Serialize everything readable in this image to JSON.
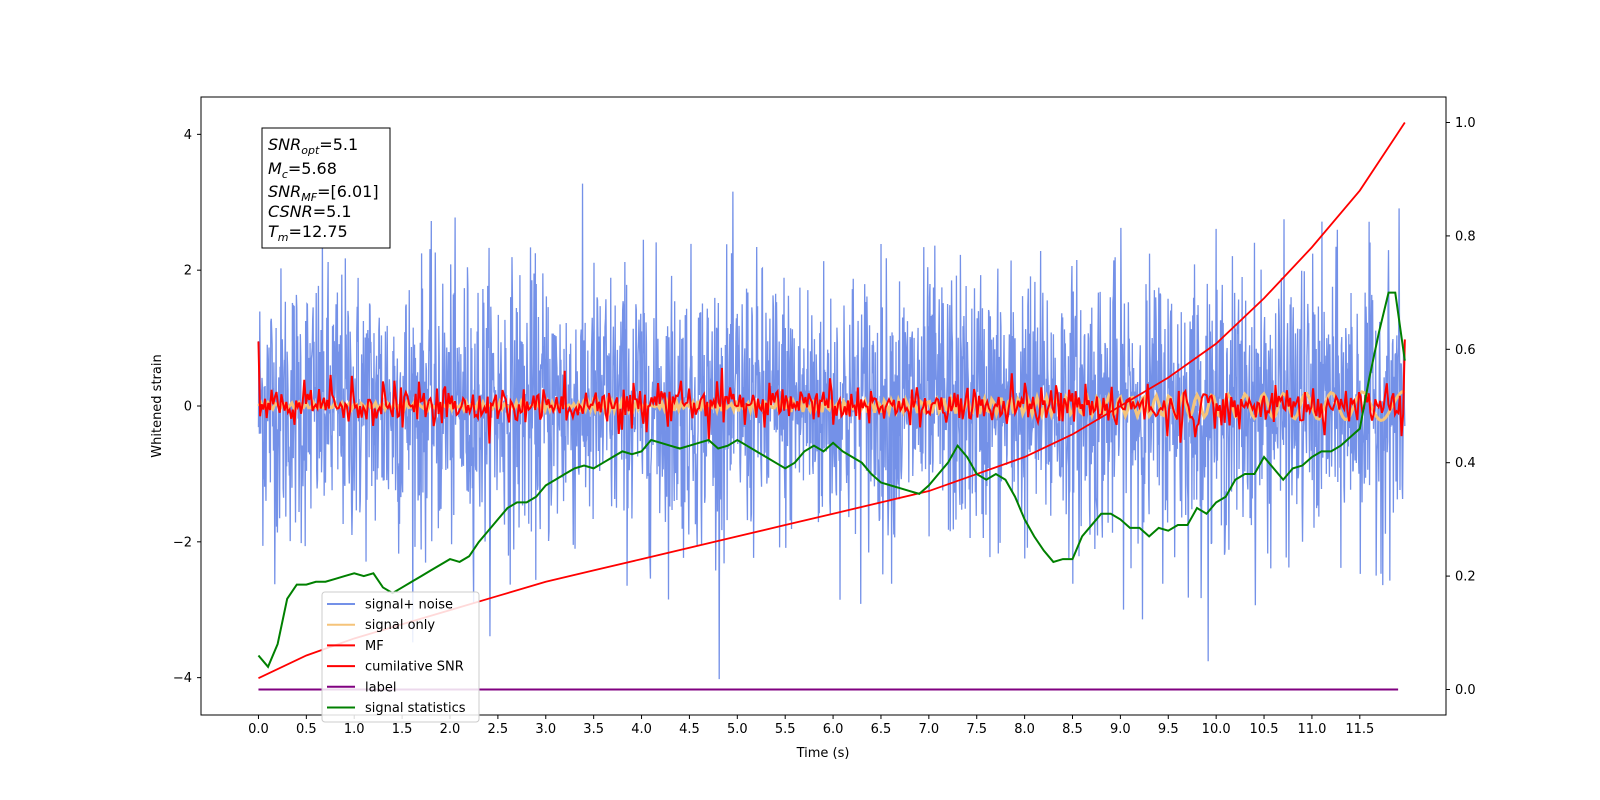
{
  "chart_data": {
    "type": "line",
    "xlabel": "Time (s)",
    "ylabel": "Whitened strain",
    "xlim": [
      -0.6,
      12.4
    ],
    "ylim": [
      -4.55,
      4.55
    ],
    "y2lim": [
      -0.045,
      1.045
    ],
    "grid": false,
    "legend_placement": "lower-left",
    "x_ticks": [
      "0.0",
      "0.5",
      "1.0",
      "1.5",
      "2.0",
      "2.5",
      "3.0",
      "3.5",
      "4.0",
      "4.5",
      "5.0",
      "5.5",
      "6.0",
      "6.5",
      "7.0",
      "7.5",
      "8.0",
      "8.5",
      "9.0",
      "9.5",
      "10.0",
      "10.5",
      "11.0",
      "11.5"
    ],
    "y_ticks": [
      "4",
      "2",
      "0",
      "−2",
      "−4"
    ],
    "y2_ticks": [
      "1.0",
      "0.8",
      "0.6",
      "0.4",
      "0.2",
      "0.0"
    ],
    "info_box": {
      "snr_opt": {
        "base": "SNR",
        "sub": "opt",
        "value": "=5.1"
      },
      "mc": {
        "base": "M",
        "sub": "c",
        "value": "=5.68"
      },
      "snr_mf": {
        "base": "SNR",
        "sub": "MF",
        "value": "=[6.01]"
      },
      "csnr": {
        "base": "CSNR",
        "value": "=5.1"
      },
      "tm": {
        "base": "T",
        "sub": "m",
        "value": "=12.75"
      }
    },
    "series": [
      {
        "name": "signal+ noise",
        "color": "#7491e8",
        "axis": "left",
        "noise_sigma": 1.0,
        "x_range": [
          0,
          11.97
        ]
      },
      {
        "name": "signal only",
        "color": "#f5c47a",
        "axis": "left",
        "amplitude_start": 0.05,
        "amplitude_end": 0.22,
        "x_range": [
          0,
          11.97
        ]
      },
      {
        "name": "MF",
        "color": "#ff0000",
        "axis": "left",
        "x_range": [
          0,
          11.97
        ]
      },
      {
        "name": "cumilative SNR",
        "color": "#ff0000",
        "axis": "right",
        "points": [
          [
            0,
            0.02
          ],
          [
            0.5,
            0.06
          ],
          [
            1,
            0.09
          ],
          [
            1.5,
            0.115
          ],
          [
            2,
            0.14
          ],
          [
            2.5,
            0.165
          ],
          [
            3,
            0.19
          ],
          [
            3.5,
            0.21
          ],
          [
            4,
            0.23
          ],
          [
            4.5,
            0.25
          ],
          [
            5,
            0.27
          ],
          [
            5.5,
            0.29
          ],
          [
            6,
            0.31
          ],
          [
            6.5,
            0.33
          ],
          [
            7,
            0.35
          ],
          [
            7.5,
            0.38
          ],
          [
            8,
            0.41
          ],
          [
            8.5,
            0.45
          ],
          [
            9,
            0.5
          ],
          [
            9.5,
            0.55
          ],
          [
            10,
            0.61
          ],
          [
            10.5,
            0.69
          ],
          [
            11,
            0.78
          ],
          [
            11.5,
            0.88
          ],
          [
            11.97,
            1.0
          ]
        ]
      },
      {
        "name": "label",
        "color": "#800080",
        "axis": "right",
        "points": [
          [
            0,
            0.0
          ],
          [
            11.9,
            0.0
          ]
        ]
      },
      {
        "name": "signal statistics",
        "color": "#008000",
        "axis": "right",
        "points": [
          [
            0,
            0.06
          ],
          [
            0.1,
            0.04
          ],
          [
            0.2,
            0.08
          ],
          [
            0.3,
            0.16
          ],
          [
            0.4,
            0.185
          ],
          [
            0.5,
            0.185
          ],
          [
            0.6,
            0.19
          ],
          [
            0.7,
            0.19
          ],
          [
            0.8,
            0.195
          ],
          [
            0.9,
            0.2
          ],
          [
            1,
            0.205
          ],
          [
            1.1,
            0.2
          ],
          [
            1.2,
            0.205
          ],
          [
            1.3,
            0.18
          ],
          [
            1.4,
            0.17
          ],
          [
            1.5,
            0.18
          ],
          [
            1.6,
            0.19
          ],
          [
            1.7,
            0.2
          ],
          [
            1.8,
            0.21
          ],
          [
            1.9,
            0.22
          ],
          [
            2,
            0.23
          ],
          [
            2.1,
            0.225
          ],
          [
            2.2,
            0.235
          ],
          [
            2.3,
            0.26
          ],
          [
            2.4,
            0.28
          ],
          [
            2.5,
            0.3
          ],
          [
            2.6,
            0.32
          ],
          [
            2.7,
            0.33
          ],
          [
            2.8,
            0.33
          ],
          [
            2.9,
            0.34
          ],
          [
            3,
            0.36
          ],
          [
            3.1,
            0.37
          ],
          [
            3.2,
            0.38
          ],
          [
            3.3,
            0.39
          ],
          [
            3.4,
            0.395
          ],
          [
            3.5,
            0.39
          ],
          [
            3.6,
            0.4
          ],
          [
            3.7,
            0.41
          ],
          [
            3.8,
            0.42
          ],
          [
            3.9,
            0.415
          ],
          [
            4,
            0.42
          ],
          [
            4.1,
            0.44
          ],
          [
            4.2,
            0.435
          ],
          [
            4.3,
            0.43
          ],
          [
            4.4,
            0.425
          ],
          [
            4.5,
            0.43
          ],
          [
            4.6,
            0.435
          ],
          [
            4.7,
            0.44
          ],
          [
            4.8,
            0.425
          ],
          [
            4.9,
            0.43
          ],
          [
            5,
            0.44
          ],
          [
            5.1,
            0.43
          ],
          [
            5.2,
            0.42
          ],
          [
            5.3,
            0.41
          ],
          [
            5.4,
            0.4
          ],
          [
            5.5,
            0.39
          ],
          [
            5.6,
            0.4
          ],
          [
            5.7,
            0.42
          ],
          [
            5.8,
            0.43
          ],
          [
            5.9,
            0.42
          ],
          [
            6,
            0.435
          ],
          [
            6.1,
            0.42
          ],
          [
            6.2,
            0.41
          ],
          [
            6.3,
            0.4
          ],
          [
            6.4,
            0.38
          ],
          [
            6.5,
            0.365
          ],
          [
            6.6,
            0.36
          ],
          [
            6.7,
            0.355
          ],
          [
            6.8,
            0.35
          ],
          [
            6.9,
            0.345
          ],
          [
            7,
            0.36
          ],
          [
            7.1,
            0.38
          ],
          [
            7.2,
            0.4
          ],
          [
            7.3,
            0.43
          ],
          [
            7.4,
            0.41
          ],
          [
            7.5,
            0.38
          ],
          [
            7.6,
            0.37
          ],
          [
            7.7,
            0.38
          ],
          [
            7.8,
            0.37
          ],
          [
            7.9,
            0.34
          ],
          [
            8,
            0.3
          ],
          [
            8.1,
            0.27
          ],
          [
            8.2,
            0.245
          ],
          [
            8.3,
            0.225
          ],
          [
            8.4,
            0.23
          ],
          [
            8.5,
            0.23
          ],
          [
            8.6,
            0.27
          ],
          [
            8.7,
            0.29
          ],
          [
            8.8,
            0.31
          ],
          [
            8.9,
            0.31
          ],
          [
            9,
            0.3
          ],
          [
            9.1,
            0.285
          ],
          [
            9.2,
            0.285
          ],
          [
            9.3,
            0.27
          ],
          [
            9.4,
            0.285
          ],
          [
            9.5,
            0.28
          ],
          [
            9.6,
            0.29
          ],
          [
            9.7,
            0.29
          ],
          [
            9.8,
            0.32
          ],
          [
            9.9,
            0.31
          ],
          [
            10,
            0.33
          ],
          [
            10.1,
            0.34
          ],
          [
            10.2,
            0.37
          ],
          [
            10.3,
            0.38
          ],
          [
            10.4,
            0.38
          ],
          [
            10.5,
            0.41
          ],
          [
            10.6,
            0.39
          ],
          [
            10.7,
            0.37
          ],
          [
            10.8,
            0.39
          ],
          [
            10.9,
            0.395
          ],
          [
            11,
            0.41
          ],
          [
            11.1,
            0.42
          ],
          [
            11.2,
            0.42
          ],
          [
            11.3,
            0.43
          ],
          [
            11.4,
            0.445
          ],
          [
            11.5,
            0.46
          ],
          [
            11.6,
            0.55
          ],
          [
            11.7,
            0.63
          ],
          [
            11.8,
            0.7
          ],
          [
            11.87,
            0.7
          ],
          [
            11.97,
            0.58
          ]
        ]
      }
    ]
  }
}
